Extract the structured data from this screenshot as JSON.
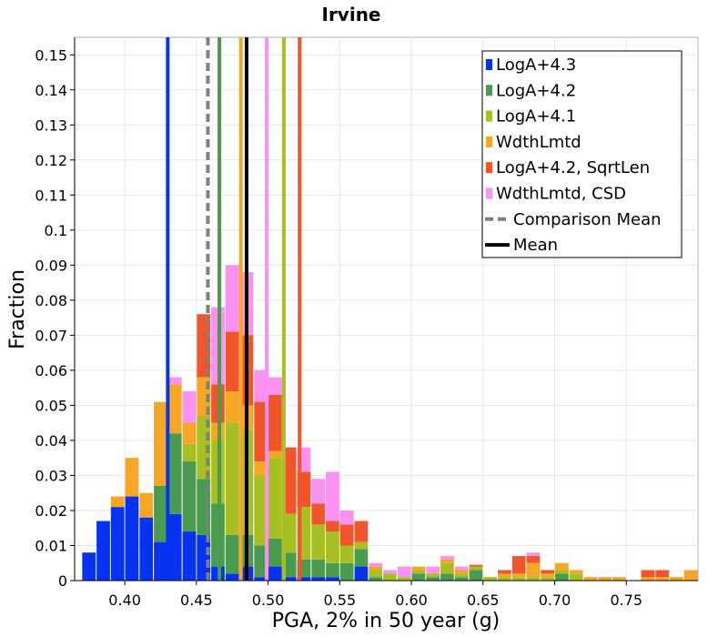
{
  "chart_data": {
    "type": "bar",
    "title": "Irvine",
    "xlabel": "PGA, 2% in 50 year (g)",
    "ylabel": "Fraction",
    "xlim": [
      0.365,
      0.8
    ],
    "ylim": [
      0,
      0.155
    ],
    "x_ticks": [
      0.4,
      0.45,
      0.5,
      0.55,
      0.6,
      0.65,
      0.7,
      0.75
    ],
    "x_tick_labels": [
      "0.40",
      "0.45",
      "0.50",
      "0.55",
      "0.60",
      "0.65",
      "0.70",
      "0.75"
    ],
    "y_ticks": [
      0,
      0.01,
      0.02,
      0.03,
      0.04,
      0.05,
      0.06,
      0.07,
      0.08,
      0.09,
      0.1,
      0.11,
      0.12,
      0.13,
      0.14,
      0.15
    ],
    "y_tick_labels": [
      "0",
      "0.01",
      "0.02",
      "0.03",
      "0.04",
      "0.05",
      "0.06",
      "0.07",
      "0.08",
      "0.09",
      "0.1",
      "0.11",
      "0.12",
      "0.13",
      "0.14",
      "0.15"
    ],
    "grid": true,
    "bin_width": 0.01,
    "series": [
      {
        "name": "LogA+4.3",
        "color": "#0533f0",
        "x": [
          0.375,
          0.385,
          0.395,
          0.405,
          0.415,
          0.425,
          0.435,
          0.445,
          0.455,
          0.465,
          0.475,
          0.485,
          0.495,
          0.505,
          0.515,
          0.525,
          0.535,
          0.545,
          0.555,
          0.565
        ],
        "values": [
          0.008,
          0.017,
          0.021,
          0.024,
          0.018,
          0.011,
          0.019,
          0.014,
          0.013,
          0.004,
          0.002,
          0.004,
          0.001,
          0.004,
          0.001,
          0.001,
          0.001,
          0.001,
          0.0,
          0.004
        ]
      },
      {
        "name": "LogA+4.2",
        "color": "#4a9a50",
        "x": [
          0.395,
          0.405,
          0.415,
          0.425,
          0.435,
          0.445,
          0.455,
          0.465,
          0.475,
          0.485,
          0.495,
          0.505,
          0.515,
          0.525,
          0.535,
          0.545,
          0.555,
          0.565,
          0.575,
          0.605,
          0.615,
          0.625,
          0.635,
          0.645,
          0.705
        ],
        "values": [
          0.0,
          0.0,
          0.0,
          0.016,
          0.023,
          0.02,
          0.016,
          0.018,
          0.011,
          0.009,
          0.009,
          0.008,
          0.007,
          0.005,
          0.005,
          0.004,
          0.005,
          0.005,
          0.001,
          0.002,
          0.001,
          0.002,
          0.001,
          0.003,
          0.002
        ]
      },
      {
        "name": "LogA+4.1",
        "color": "#a8bf24",
        "x": [
          0.445,
          0.455,
          0.465,
          0.475,
          0.485,
          0.495,
          0.505,
          0.515,
          0.525,
          0.535,
          0.545,
          0.555,
          0.565,
          0.575,
          0.585,
          0.595,
          0.605,
          0.615,
          0.625,
          0.635,
          0.645,
          0.655,
          0.665,
          0.675,
          0.685,
          0.695,
          0.705,
          0.715
        ],
        "values": [
          0.005,
          0.018,
          0.018,
          0.032,
          0.03,
          0.02,
          0.023,
          0.011,
          0.015,
          0.01,
          0.009,
          0.005,
          0.002,
          0.002,
          0.002,
          0.001,
          0.001,
          0.001,
          0.003,
          0.001,
          0.001,
          0.001,
          0.001,
          0.001,
          0.001,
          0.001,
          0.001,
          0.002
        ]
      },
      {
        "name": "WdthLmtd",
        "color": "#f5a623",
        "x": [
          0.375,
          0.385,
          0.395,
          0.405,
          0.415,
          0.425,
          0.435,
          0.445,
          0.455,
          0.465,
          0.475,
          0.485,
          0.495,
          0.505,
          0.515,
          0.525,
          0.535,
          0.545,
          0.555,
          0.565,
          0.575,
          0.605,
          0.615,
          0.625,
          0.635,
          0.645,
          0.665,
          0.675,
          0.685,
          0.695,
          0.705,
          0.715,
          0.725,
          0.735,
          0.745,
          0.755,
          0.765,
          0.775,
          0.785,
          0.795
        ],
        "values": [
          0.0,
          0.0,
          0.003,
          0.011,
          0.007,
          0.024,
          0.014,
          0.006,
          0.011,
          0.005,
          0.009,
          0.007,
          0.004,
          0.002,
          0.0,
          0.0,
          0.0,
          0.0,
          0.0,
          0.0,
          0.001,
          0.001,
          0.0,
          0.001,
          0.001,
          0.0,
          0.001,
          0.001,
          0.004,
          0.001,
          0.002,
          0.001,
          0.001,
          0.001,
          0.001,
          0.0,
          0.001,
          0.001,
          0.001,
          0.003
        ]
      },
      {
        "name": "LogA+4.2, SqrtLen",
        "color": "#f0562a",
        "x": [
          0.455,
          0.465,
          0.475,
          0.485,
          0.495,
          0.505,
          0.515,
          0.525,
          0.535,
          0.545,
          0.555,
          0.565,
          0.645,
          0.665,
          0.675,
          0.685,
          0.695,
          0.765,
          0.775,
          0.785
        ],
        "values": [
          0.018,
          0.011,
          0.017,
          0.02,
          0.017,
          0.016,
          0.019,
          0.01,
          0.006,
          0.003,
          0.006,
          0.006,
          0.0005,
          0.001,
          0.005,
          0.002,
          0.001,
          0.002,
          0.002,
          0.0
        ]
      },
      {
        "name": "WdthLmtd, CSD",
        "color": "#fb92f1",
        "x": [
          0.435,
          0.445,
          0.465,
          0.475,
          0.485,
          0.495,
          0.505,
          0.515,
          0.525,
          0.535,
          0.545,
          0.555,
          0.565,
          0.575,
          0.585,
          0.595,
          0.605,
          0.615,
          0.625,
          0.635,
          0.685
        ],
        "values": [
          0.002,
          0.009,
          0.022,
          0.019,
          0.018,
          0.009,
          0.005,
          0.0,
          0.007,
          0.007,
          0.014,
          0.004,
          0.0,
          0.001,
          0.001,
          0.003,
          0.0,
          0.002,
          0.001,
          0.001,
          0.001
        ]
      }
    ],
    "vertical_lines": [
      {
        "name": "LogA+4.3",
        "x": 0.43,
        "color": "#0533f0",
        "style": "solid"
      },
      {
        "name": "LogA+4.2",
        "x": 0.466,
        "color": "#4a9a50",
        "style": "solid"
      },
      {
        "name": "LogA+4.1",
        "x": 0.511,
        "color": "#a8bf24",
        "style": "solid"
      },
      {
        "name": "WdthLmtd",
        "x": 0.481,
        "color": "#f5a623",
        "style": "solid"
      },
      {
        "name": "LogA+4.2, SqrtLen",
        "x": 0.522,
        "color": "#f0562a",
        "style": "solid"
      },
      {
        "name": "WdthLmtd, CSD",
        "x": 0.499,
        "color": "#fb92f1",
        "style": "solid"
      },
      {
        "name": "Comparison Mean",
        "x": 0.458,
        "color": "#808080",
        "style": "dashed"
      },
      {
        "name": "Mean",
        "x": 0.485,
        "color": "#000000",
        "style": "solid"
      }
    ],
    "legend": {
      "placement": "top-right",
      "entries": [
        {
          "label": "LogA+4.3",
          "color": "#0533f0",
          "kind": "box"
        },
        {
          "label": "LogA+4.2",
          "color": "#4a9a50",
          "kind": "box"
        },
        {
          "label": "LogA+4.1",
          "color": "#a8bf24",
          "kind": "box"
        },
        {
          "label": "WdthLmtd",
          "color": "#f5a623",
          "kind": "box"
        },
        {
          "label": "LogA+4.2, SqrtLen",
          "color": "#f0562a",
          "kind": "box"
        },
        {
          "label": "WdthLmtd, CSD",
          "color": "#fb92f1",
          "kind": "box"
        },
        {
          "label": "Comparison Mean",
          "color": "#808080",
          "kind": "dashed-line"
        },
        {
          "label": "Mean",
          "color": "#000000",
          "kind": "line"
        }
      ]
    }
  }
}
